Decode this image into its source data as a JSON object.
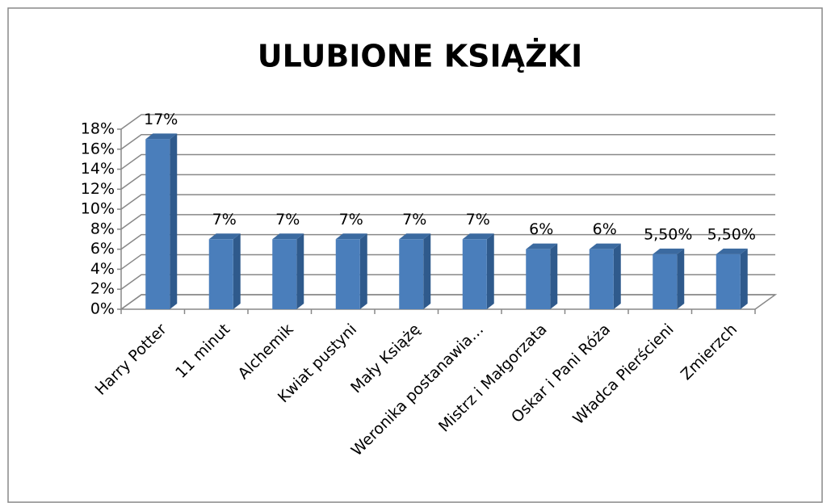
{
  "chart_data": {
    "type": "bar3d",
    "title": "ULUBIONE KSIĄŻKI",
    "categories": [
      "Harry Potter",
      "11 minut",
      "Alchemik",
      "Kwiat pustyni",
      "Mały Książę",
      "Weronika postanawia…",
      "Mistrz i Małgorzata",
      "Oskar i Pani Róża",
      "Władca Pierścieni",
      "Zmierzch"
    ],
    "values": [
      17,
      7,
      7,
      7,
      7,
      7,
      6,
      6,
      5.5,
      5.5
    ],
    "value_labels": [
      "17%",
      "7%",
      "7%",
      "7%",
      "7%",
      "7%",
      "6%",
      "6%",
      "5,50%",
      "5,50%"
    ],
    "color": "#4a7ebb",
    "ylim": [
      0,
      18
    ],
    "yticks": [
      {
        "value": 0,
        "label": "0%"
      },
      {
        "value": 2,
        "label": "2%"
      },
      {
        "value": 4,
        "label": "4%"
      },
      {
        "value": 6,
        "label": "6%"
      },
      {
        "value": 8,
        "label": "8%"
      },
      {
        "value": 10,
        "label": "10%"
      },
      {
        "value": 12,
        "label": "12%"
      },
      {
        "value": 14,
        "label": "14%"
      },
      {
        "value": 16,
        "label": "16%"
      },
      {
        "value": 18,
        "label": "18%"
      }
    ],
    "grid": true
  }
}
